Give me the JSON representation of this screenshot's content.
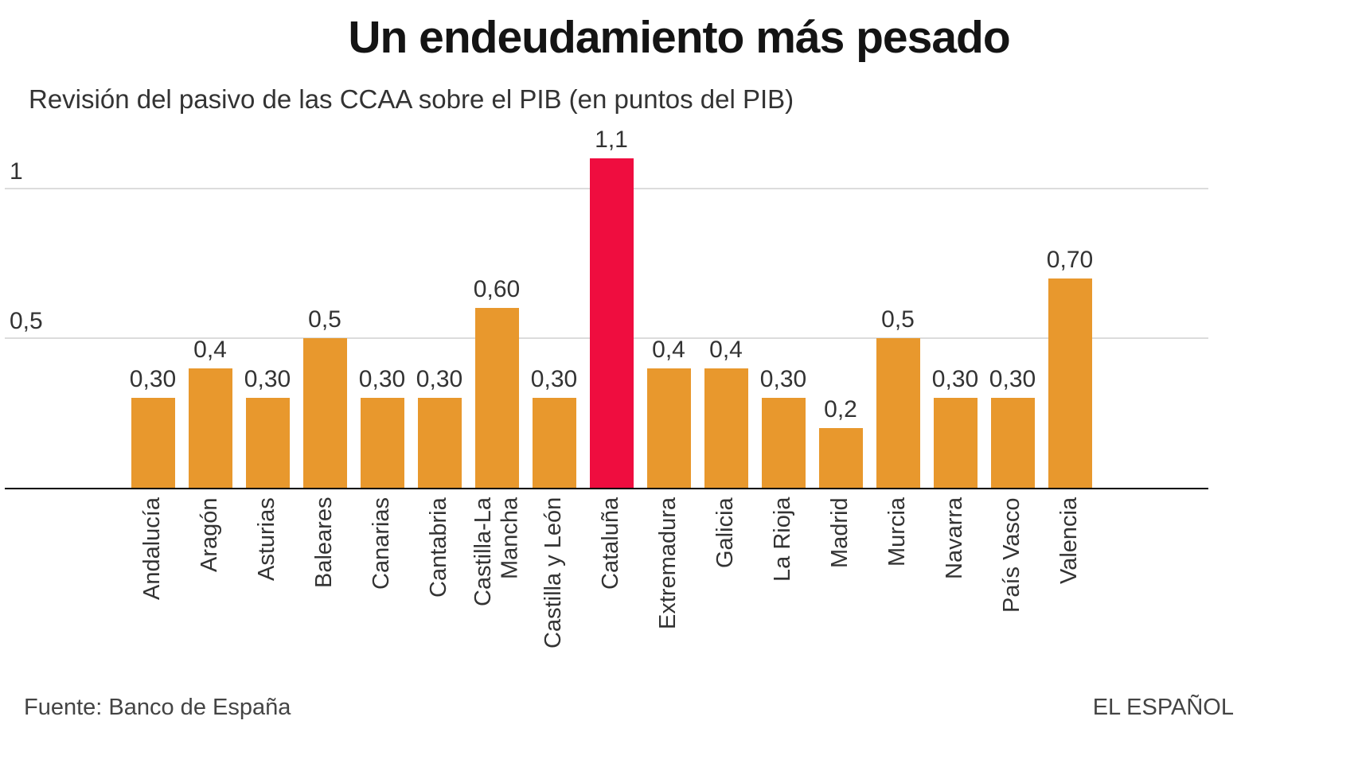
{
  "chart": {
    "title": "Un endeudamiento más pesado",
    "subtitle": "Revisión del pasivo de las CCAA sobre el PIB (en puntos del PIB)",
    "source": "Fuente: Banco de España",
    "brand": "EL ESPAÑOL"
  },
  "chart_data": {
    "type": "bar",
    "title": "Un endeudamiento más pesado",
    "subtitle": "Revisión del pasivo de las CCAA sobre el PIB (en puntos del PIB)",
    "categories": [
      "Andalucía",
      "Aragón",
      "Asturias",
      "Baleares",
      "Canarias",
      "Cantabria",
      "Castilla-La Mancha",
      "Castilla y León",
      "Cataluña",
      "Extremadura",
      "Galicia",
      "La Rioja",
      "Madrid",
      "Murcia",
      "Navarra",
      "País Vasco",
      "Valencia"
    ],
    "values": [
      0.3,
      0.4,
      0.3,
      0.5,
      0.3,
      0.3,
      0.6,
      0.3,
      1.1,
      0.4,
      0.4,
      0.3,
      0.2,
      0.5,
      0.3,
      0.3,
      0.7
    ],
    "value_labels": [
      "0,30",
      "0,4",
      "0,30",
      "0,5",
      "0,30",
      "0,30",
      "0,60",
      "0,30",
      "1,1",
      "0,4",
      "0,4",
      "0,30",
      "0,2",
      "0,5",
      "0,30",
      "0,30",
      "0,70"
    ],
    "highlight_index": 8,
    "highlight_category": "Cataluña",
    "colors": {
      "bar": "#E8982D",
      "highlight": "#EF0D3F"
    },
    "yticks": [
      {
        "value": 0.5,
        "label": "0,5"
      },
      {
        "value": 1,
        "label": "1"
      }
    ],
    "ylim": [
      0,
      1.15
    ],
    "grid": true,
    "legend": false,
    "xlabel": "",
    "ylabel": "",
    "source": "Fuente: Banco de España",
    "brand": "EL ESPAÑOL"
  }
}
